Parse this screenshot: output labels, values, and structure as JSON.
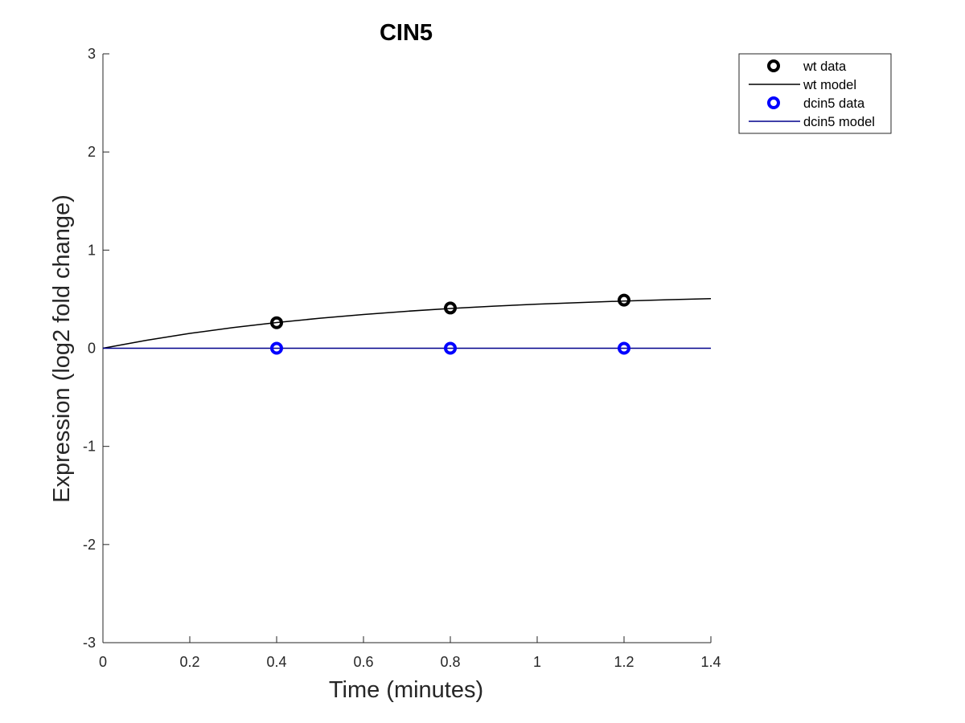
{
  "chart_data": {
    "type": "line",
    "title": "CIN5",
    "xlabel": "Time (minutes)",
    "ylabel": "Expression (log2 fold change)",
    "xlim": [
      0,
      1.4
    ],
    "ylim": [
      -3,
      3
    ],
    "xticks": [
      0,
      0.2,
      0.4,
      0.6,
      0.8,
      1,
      1.2,
      1.4
    ],
    "xtick_labels": [
      "0",
      "0.2",
      "0.4",
      "0.6",
      "0.8",
      "1",
      "1.2",
      "1.4"
    ],
    "yticks": [
      -3,
      -2,
      -1,
      0,
      1,
      2,
      3
    ],
    "ytick_labels": [
      "-3",
      "-2",
      "-1",
      "0",
      "1",
      "2",
      "3"
    ],
    "grid": false,
    "legend_position": "top-right",
    "series": [
      {
        "name": "wt data",
        "kind": "scatter",
        "color": "#000000",
        "x": [
          0.4,
          0.8,
          1.2
        ],
        "y": [
          0.26,
          0.41,
          0.49
        ]
      },
      {
        "name": "wt model",
        "kind": "line",
        "color": "#000000",
        "x": [
          0,
          0.1,
          0.2,
          0.3,
          0.4,
          0.5,
          0.6,
          0.7,
          0.8,
          0.9,
          1.0,
          1.1,
          1.2,
          1.3,
          1.4
        ],
        "y": [
          0,
          0.081,
          0.151,
          0.211,
          0.262,
          0.306,
          0.344,
          0.377,
          0.405,
          0.429,
          0.449,
          0.466,
          0.481,
          0.494,
          0.505
        ]
      },
      {
        "name": "dcin5 data",
        "kind": "scatter",
        "color": "#0000ff",
        "x": [
          0.4,
          0.8,
          1.2
        ],
        "y": [
          0,
          0,
          0
        ]
      },
      {
        "name": "dcin5 model",
        "kind": "line",
        "color": "#00008b",
        "x": [
          0,
          1.4
        ],
        "y": [
          0,
          0
        ]
      }
    ]
  }
}
